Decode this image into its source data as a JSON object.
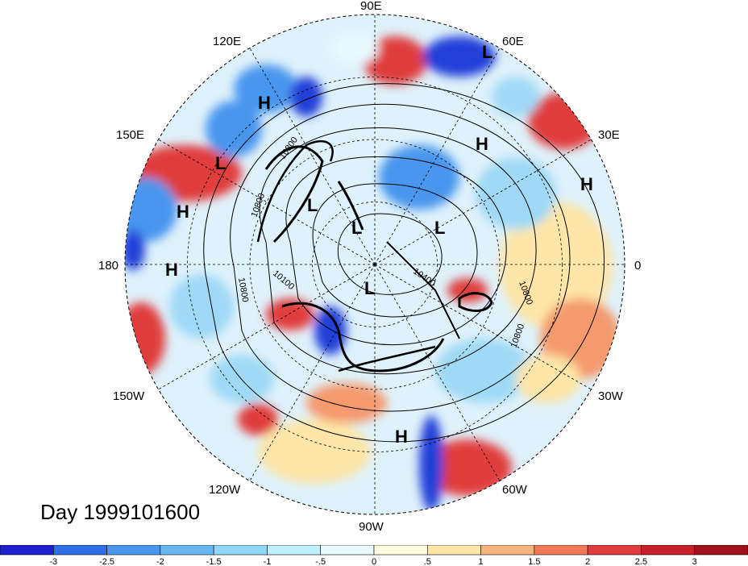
{
  "title": "Day 1999101600",
  "longitude_labels": [
    "90E",
    "60E",
    "30E",
    "0",
    "30W",
    "60W",
    "90W",
    "120W",
    "150W",
    "180",
    "150E",
    "120E"
  ],
  "contour_labels": [
    "10800",
    "10800",
    "10800",
    "10100",
    "10400",
    "10800",
    "10800"
  ],
  "highs_lows": [
    {
      "text": "L",
      "name": "low-center-north-siberia"
    },
    {
      "text": "H",
      "name": "high-center-east-asia"
    },
    {
      "text": "L",
      "name": "low-center-north-pacific"
    },
    {
      "text": "H",
      "name": "high-center-west-pacific"
    },
    {
      "text": "H",
      "name": "high-center-dateline"
    },
    {
      "text": "L",
      "name": "low-center-bering"
    },
    {
      "text": "L",
      "name": "low-center-arctic"
    },
    {
      "text": "L",
      "name": "low-center-barents"
    },
    {
      "text": "H",
      "name": "high-center-europe"
    },
    {
      "text": "H",
      "name": "high-center-middle-east"
    },
    {
      "text": "L",
      "name": "low-center-canada"
    },
    {
      "text": "H",
      "name": "high-center-gulf"
    }
  ],
  "colorbar": {
    "labels": [
      "-3",
      "-2.5",
      "-2",
      "-1.5",
      "-1",
      "-.5",
      "0",
      ".5",
      "1",
      "1.5",
      "2",
      "2.5",
      "3"
    ],
    "colors": [
      "#1e1ecc",
      "#2e6fe6",
      "#4a96ee",
      "#6ab8f2",
      "#90d6f7",
      "#bfeefc",
      "#e8f9ff",
      "#fffbe0",
      "#fde6a8",
      "#f7b57e",
      "#f07a5a",
      "#e03e3e",
      "#c81e2a",
      "#a0101c"
    ]
  },
  "anomaly_palette": {
    "deep_blue": "#2040d8",
    "blue": "#4a96ee",
    "light_blue": "#9fd9f6",
    "pale": "#e8f9ff",
    "pale_warm": "#fde6a8",
    "orange": "#f49a6e",
    "red": "#e03e3e",
    "deep_red": "#b81a26"
  }
}
